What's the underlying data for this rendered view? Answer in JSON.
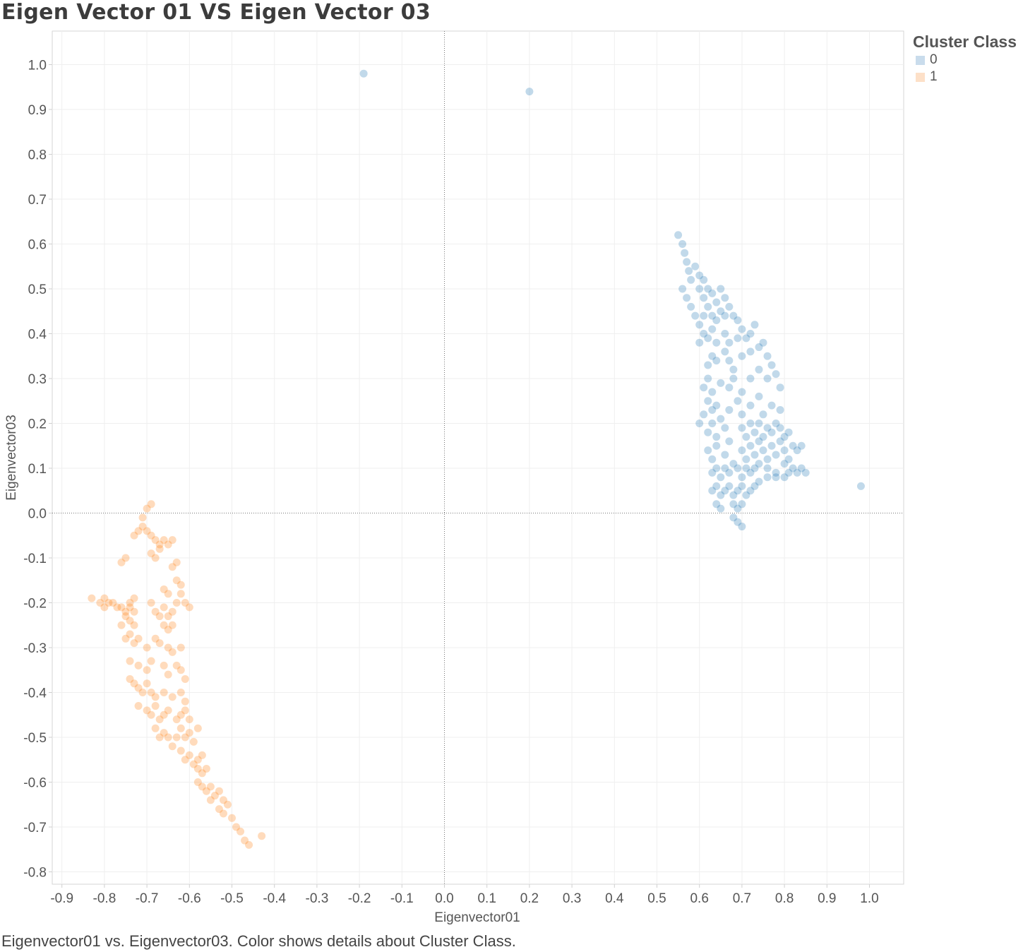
{
  "title": "Eigen Vector 01 VS Eigen Vector 03",
  "caption": "Eigenvector01 vs. Eigenvector03.  Color shows details about Cluster Class.",
  "legend": {
    "title": "Cluster Class",
    "items": [
      {
        "label": "0",
        "color": "#1f77b4"
      },
      {
        "label": "1",
        "color": "#ff7f0e"
      }
    ]
  },
  "chart_data": {
    "type": "scatter",
    "title": "Eigen Vector 01 VS Eigen Vector 03",
    "xlabel": "Eigenvector01",
    "ylabel": "Eigenvector03",
    "xlim": [
      -0.92,
      1.08
    ],
    "ylim": [
      -0.82,
      1.07
    ],
    "x_ticks": [
      "-0.9",
      "-0.8",
      "-0.7",
      "-0.6",
      "-0.5",
      "-0.4",
      "-0.3",
      "-0.2",
      "-0.1",
      "0.0",
      "0.1",
      "0.2",
      "0.3",
      "0.4",
      "0.5",
      "0.6",
      "0.7",
      "0.8",
      "0.9",
      "1.0"
    ],
    "y_ticks": [
      "1.0",
      "0.9",
      "0.8",
      "0.7",
      "0.6",
      "0.5",
      "0.4",
      "0.3",
      "0.2",
      "0.1",
      "0.0",
      "-0.1",
      "-0.2",
      "-0.3",
      "-0.4",
      "-0.5",
      "-0.6",
      "-0.7",
      "-0.8"
    ],
    "grid": true,
    "legend_position": "right",
    "series": [
      {
        "name": "0",
        "color": "#1f77b4",
        "points": [
          [
            -0.19,
            0.98
          ],
          [
            0.2,
            0.94
          ],
          [
            0.98,
            0.06
          ],
          [
            0.55,
            0.62
          ],
          [
            0.56,
            0.6
          ],
          [
            0.565,
            0.58
          ],
          [
            0.57,
            0.56
          ],
          [
            0.575,
            0.54
          ],
          [
            0.58,
            0.52
          ],
          [
            0.59,
            0.55
          ],
          [
            0.6,
            0.53
          ],
          [
            0.61,
            0.52
          ],
          [
            0.56,
            0.5
          ],
          [
            0.57,
            0.48
          ],
          [
            0.58,
            0.46
          ],
          [
            0.6,
            0.5
          ],
          [
            0.61,
            0.48
          ],
          [
            0.62,
            0.5
          ],
          [
            0.63,
            0.49
          ],
          [
            0.64,
            0.47
          ],
          [
            0.65,
            0.5
          ],
          [
            0.66,
            0.48
          ],
          [
            0.59,
            0.44
          ],
          [
            0.6,
            0.42
          ],
          [
            0.61,
            0.44
          ],
          [
            0.62,
            0.46
          ],
          [
            0.63,
            0.44
          ],
          [
            0.64,
            0.43
          ],
          [
            0.65,
            0.45
          ],
          [
            0.66,
            0.44
          ],
          [
            0.67,
            0.46
          ],
          [
            0.68,
            0.44
          ],
          [
            0.69,
            0.43
          ],
          [
            0.6,
            0.38
          ],
          [
            0.61,
            0.4
          ],
          [
            0.62,
            0.39
          ],
          [
            0.63,
            0.41
          ],
          [
            0.64,
            0.38
          ],
          [
            0.66,
            0.4
          ],
          [
            0.67,
            0.38
          ],
          [
            0.69,
            0.39
          ],
          [
            0.7,
            0.41
          ],
          [
            0.71,
            0.39
          ],
          [
            0.72,
            0.4
          ],
          [
            0.73,
            0.42
          ],
          [
            0.62,
            0.33
          ],
          [
            0.63,
            0.35
          ],
          [
            0.64,
            0.34
          ],
          [
            0.66,
            0.36
          ],
          [
            0.67,
            0.34
          ],
          [
            0.68,
            0.32
          ],
          [
            0.7,
            0.35
          ],
          [
            0.72,
            0.36
          ],
          [
            0.74,
            0.37
          ],
          [
            0.75,
            0.38
          ],
          [
            0.76,
            0.35
          ],
          [
            0.77,
            0.33
          ],
          [
            0.61,
            0.28
          ],
          [
            0.62,
            0.3
          ],
          [
            0.63,
            0.27
          ],
          [
            0.65,
            0.29
          ],
          [
            0.67,
            0.28
          ],
          [
            0.68,
            0.3
          ],
          [
            0.7,
            0.27
          ],
          [
            0.72,
            0.3
          ],
          [
            0.74,
            0.32
          ],
          [
            0.76,
            0.3
          ],
          [
            0.78,
            0.31
          ],
          [
            0.79,
            0.28
          ],
          [
            0.61,
            0.22
          ],
          [
            0.62,
            0.25
          ],
          [
            0.63,
            0.23
          ],
          [
            0.64,
            0.24
          ],
          [
            0.65,
            0.21
          ],
          [
            0.67,
            0.23
          ],
          [
            0.69,
            0.25
          ],
          [
            0.7,
            0.22
          ],
          [
            0.72,
            0.24
          ],
          [
            0.74,
            0.26
          ],
          [
            0.75,
            0.22
          ],
          [
            0.77,
            0.24
          ],
          [
            0.79,
            0.23
          ],
          [
            0.6,
            0.2
          ],
          [
            0.62,
            0.18
          ],
          [
            0.63,
            0.2
          ],
          [
            0.64,
            0.17
          ],
          [
            0.66,
            0.19
          ],
          [
            0.67,
            0.16
          ],
          [
            0.7,
            0.19
          ],
          [
            0.71,
            0.17
          ],
          [
            0.72,
            0.2
          ],
          [
            0.73,
            0.18
          ],
          [
            0.74,
            0.2
          ],
          [
            0.75,
            0.17
          ],
          [
            0.76,
            0.19
          ],
          [
            0.77,
            0.18
          ],
          [
            0.78,
            0.2
          ],
          [
            0.79,
            0.19
          ],
          [
            0.8,
            0.17
          ],
          [
            0.81,
            0.18
          ],
          [
            0.62,
            0.14
          ],
          [
            0.63,
            0.12
          ],
          [
            0.64,
            0.15
          ],
          [
            0.66,
            0.13
          ],
          [
            0.68,
            0.11
          ],
          [
            0.7,
            0.14
          ],
          [
            0.71,
            0.12
          ],
          [
            0.72,
            0.15
          ],
          [
            0.73,
            0.13
          ],
          [
            0.74,
            0.16
          ],
          [
            0.75,
            0.14
          ],
          [
            0.76,
            0.12
          ],
          [
            0.77,
            0.15
          ],
          [
            0.78,
            0.13
          ],
          [
            0.79,
            0.16
          ],
          [
            0.8,
            0.14
          ],
          [
            0.81,
            0.12
          ],
          [
            0.82,
            0.15
          ],
          [
            0.83,
            0.14
          ],
          [
            0.84,
            0.15
          ],
          [
            0.63,
            0.09
          ],
          [
            0.64,
            0.1
          ],
          [
            0.65,
            0.08
          ],
          [
            0.66,
            0.1
          ],
          [
            0.67,
            0.09
          ],
          [
            0.69,
            0.1
          ],
          [
            0.7,
            0.08
          ],
          [
            0.71,
            0.1
          ],
          [
            0.72,
            0.09
          ],
          [
            0.73,
            0.1
          ],
          [
            0.74,
            0.11
          ],
          [
            0.76,
            0.1
          ],
          [
            0.78,
            0.09
          ],
          [
            0.8,
            0.11
          ],
          [
            0.81,
            0.09
          ],
          [
            0.82,
            0.1
          ],
          [
            0.83,
            0.09
          ],
          [
            0.84,
            0.1
          ],
          [
            0.85,
            0.09
          ],
          [
            0.63,
            0.05
          ],
          [
            0.64,
            0.06
          ],
          [
            0.65,
            0.04
          ],
          [
            0.66,
            0.05
          ],
          [
            0.67,
            0.06
          ],
          [
            0.68,
            0.04
          ],
          [
            0.69,
            0.05
          ],
          [
            0.7,
            0.06
          ],
          [
            0.71,
            0.04
          ],
          [
            0.72,
            0.05
          ],
          [
            0.73,
            0.06
          ],
          [
            0.74,
            0.07
          ],
          [
            0.76,
            0.08
          ],
          [
            0.78,
            0.08
          ],
          [
            0.8,
            0.08
          ],
          [
            0.64,
            0.02
          ],
          [
            0.65,
            0.01
          ],
          [
            0.68,
            0.02
          ],
          [
            0.69,
            0.01
          ],
          [
            0.7,
            0.02
          ],
          [
            0.68,
            -0.01
          ],
          [
            0.69,
            -0.02
          ],
          [
            0.7,
            -0.03
          ]
        ]
      },
      {
        "name": "1",
        "color": "#ff7f0e",
        "points": [
          [
            -0.7,
            0.01
          ],
          [
            -0.69,
            0.02
          ],
          [
            -0.71,
            -0.01
          ],
          [
            -0.72,
            -0.04
          ],
          [
            -0.71,
            -0.03
          ],
          [
            -0.7,
            -0.04
          ],
          [
            -0.69,
            -0.05
          ],
          [
            -0.68,
            -0.06
          ],
          [
            -0.67,
            -0.07
          ],
          [
            -0.66,
            -0.06
          ],
          [
            -0.65,
            -0.07
          ],
          [
            -0.64,
            -0.06
          ],
          [
            -0.73,
            -0.05
          ],
          [
            -0.69,
            -0.09
          ],
          [
            -0.68,
            -0.1
          ],
          [
            -0.67,
            -0.08
          ],
          [
            -0.75,
            -0.1
          ],
          [
            -0.76,
            -0.11
          ],
          [
            -0.64,
            -0.12
          ],
          [
            -0.63,
            -0.11
          ],
          [
            -0.63,
            -0.15
          ],
          [
            -0.62,
            -0.16
          ],
          [
            -0.62,
            -0.18
          ],
          [
            -0.63,
            -0.2
          ],
          [
            -0.61,
            -0.2
          ],
          [
            -0.6,
            -0.21
          ],
          [
            -0.65,
            -0.18
          ],
          [
            -0.66,
            -0.17
          ],
          [
            -0.8,
            -0.19
          ],
          [
            -0.79,
            -0.2
          ],
          [
            -0.8,
            -0.21
          ],
          [
            -0.78,
            -0.2
          ],
          [
            -0.81,
            -0.2
          ],
          [
            -0.83,
            -0.19
          ],
          [
            -0.77,
            -0.21
          ],
          [
            -0.76,
            -0.21
          ],
          [
            -0.75,
            -0.22
          ],
          [
            -0.74,
            -0.21
          ],
          [
            -0.73,
            -0.22
          ],
          [
            -0.75,
            -0.23
          ],
          [
            -0.74,
            -0.24
          ],
          [
            -0.73,
            -0.25
          ],
          [
            -0.76,
            -0.25
          ],
          [
            -0.74,
            -0.2
          ],
          [
            -0.73,
            -0.19
          ],
          [
            -0.69,
            -0.2
          ],
          [
            -0.68,
            -0.22
          ],
          [
            -0.67,
            -0.23
          ],
          [
            -0.66,
            -0.21
          ],
          [
            -0.65,
            -0.23
          ],
          [
            -0.64,
            -0.22
          ],
          [
            -0.66,
            -0.25
          ],
          [
            -0.65,
            -0.26
          ],
          [
            -0.64,
            -0.25
          ],
          [
            -0.75,
            -0.28
          ],
          [
            -0.74,
            -0.27
          ],
          [
            -0.73,
            -0.29
          ],
          [
            -0.72,
            -0.28
          ],
          [
            -0.7,
            -0.3
          ],
          [
            -0.68,
            -0.28
          ],
          [
            -0.67,
            -0.29
          ],
          [
            -0.65,
            -0.3
          ],
          [
            -0.64,
            -0.31
          ],
          [
            -0.62,
            -0.3
          ],
          [
            -0.74,
            -0.33
          ],
          [
            -0.72,
            -0.34
          ],
          [
            -0.7,
            -0.35
          ],
          [
            -0.69,
            -0.33
          ],
          [
            -0.66,
            -0.34
          ],
          [
            -0.65,
            -0.36
          ],
          [
            -0.63,
            -0.34
          ],
          [
            -0.62,
            -0.35
          ],
          [
            -0.61,
            -0.37
          ],
          [
            -0.74,
            -0.37
          ],
          [
            -0.73,
            -0.38
          ],
          [
            -0.72,
            -0.39
          ],
          [
            -0.71,
            -0.4
          ],
          [
            -0.7,
            -0.38
          ],
          [
            -0.69,
            -0.4
          ],
          [
            -0.68,
            -0.41
          ],
          [
            -0.66,
            -0.4
          ],
          [
            -0.64,
            -0.41
          ],
          [
            -0.62,
            -0.4
          ],
          [
            -0.61,
            -0.42
          ],
          [
            -0.72,
            -0.43
          ],
          [
            -0.7,
            -0.44
          ],
          [
            -0.69,
            -0.45
          ],
          [
            -0.68,
            -0.43
          ],
          [
            -0.67,
            -0.46
          ],
          [
            -0.66,
            -0.45
          ],
          [
            -0.65,
            -0.44
          ],
          [
            -0.63,
            -0.46
          ],
          [
            -0.62,
            -0.45
          ],
          [
            -0.61,
            -0.44
          ],
          [
            -0.6,
            -0.46
          ],
          [
            -0.68,
            -0.48
          ],
          [
            -0.67,
            -0.5
          ],
          [
            -0.66,
            -0.49
          ],
          [
            -0.65,
            -0.5
          ],
          [
            -0.64,
            -0.52
          ],
          [
            -0.63,
            -0.5
          ],
          [
            -0.62,
            -0.48
          ],
          [
            -0.61,
            -0.5
          ],
          [
            -0.6,
            -0.49
          ],
          [
            -0.59,
            -0.51
          ],
          [
            -0.58,
            -0.48
          ],
          [
            -0.62,
            -0.53
          ],
          [
            -0.61,
            -0.55
          ],
          [
            -0.6,
            -0.54
          ],
          [
            -0.59,
            -0.56
          ],
          [
            -0.58,
            -0.55
          ],
          [
            -0.57,
            -0.54
          ],
          [
            -0.58,
            -0.57
          ],
          [
            -0.57,
            -0.58
          ],
          [
            -0.56,
            -0.57
          ],
          [
            -0.58,
            -0.6
          ],
          [
            -0.57,
            -0.61
          ],
          [
            -0.56,
            -0.62
          ],
          [
            -0.55,
            -0.61
          ],
          [
            -0.54,
            -0.63
          ],
          [
            -0.55,
            -0.64
          ],
          [
            -0.53,
            -0.62
          ],
          [
            -0.52,
            -0.64
          ],
          [
            -0.53,
            -0.66
          ],
          [
            -0.52,
            -0.67
          ],
          [
            -0.51,
            -0.65
          ],
          [
            -0.5,
            -0.68
          ],
          [
            -0.49,
            -0.7
          ],
          [
            -0.48,
            -0.71
          ],
          [
            -0.47,
            -0.73
          ],
          [
            -0.46,
            -0.74
          ],
          [
            -0.43,
            -0.72
          ]
        ]
      }
    ]
  }
}
